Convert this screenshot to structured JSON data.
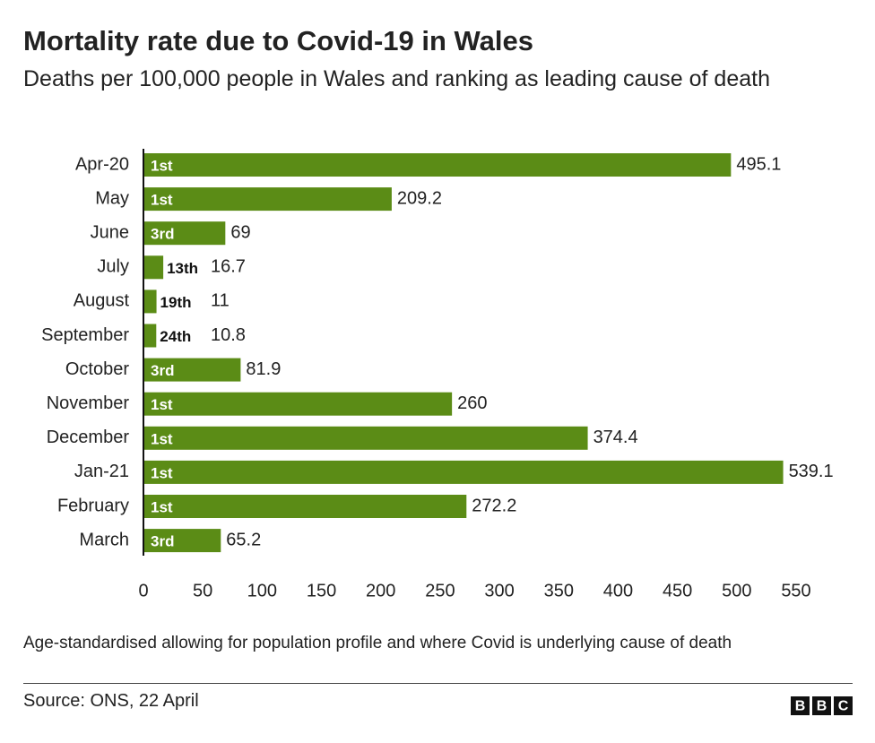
{
  "chart_data": {
    "type": "bar",
    "orientation": "horizontal",
    "title": "Mortality rate due to Covid-19 in Wales",
    "subtitle": "Deaths per 100,000 people in Wales and ranking as leading cause of death",
    "categories": [
      "Apr-20",
      "May",
      "June",
      "July",
      "August",
      "September",
      "October",
      "November",
      "December",
      "Jan-21",
      "February",
      "March"
    ],
    "values": [
      495.1,
      209.2,
      69,
      16.7,
      11,
      10.8,
      81.9,
      260,
      374.4,
      539.1,
      272.2,
      65.2
    ],
    "rank_labels": [
      "1st",
      "1st",
      "3rd",
      "13th",
      "19th",
      "24th",
      "3rd",
      "1st",
      "1st",
      "1st",
      "1st",
      "3rd"
    ],
    "color": "#5b8c16",
    "xlim": [
      0,
      550
    ],
    "xticks": [
      0,
      50,
      100,
      150,
      200,
      250,
      300,
      350,
      400,
      450,
      500,
      550
    ],
    "grid": false,
    "footnote": "Age-standardised allowing for population profile and where Covid is underlying cause of death",
    "source": "Source: ONS, 22 April",
    "logo": [
      "B",
      "B",
      "C"
    ]
  }
}
